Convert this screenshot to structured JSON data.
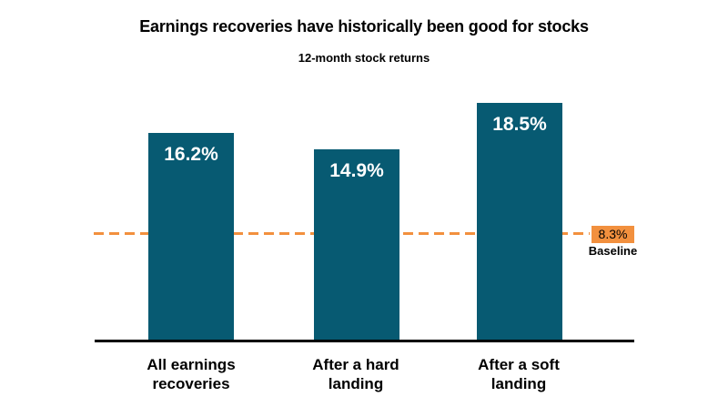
{
  "page": {
    "background": "#FFFFFF"
  },
  "chart_data": {
    "type": "bar",
    "title": "Earnings recoveries have historically been good for stocks",
    "subtitle": "12-month stock returns",
    "categories": [
      "All earnings\nrecoveries",
      "After a hard\nlanding",
      "After a soft\nlanding"
    ],
    "values": [
      16.2,
      14.9,
      18.5
    ],
    "value_labels": [
      "16.2%",
      "14.9%",
      "18.5%"
    ],
    "baseline": {
      "value": 8.3,
      "label": "8.3%",
      "caption": "Baseline"
    },
    "xlabel": "",
    "ylabel": "12-month stock returns",
    "ylim": [
      0,
      26.8
    ],
    "grid": false,
    "legend": false,
    "colors": {
      "bar": "#075A72",
      "baseline": "#F2903E",
      "bar_label": "#FFFFFF",
      "text": "#000000",
      "axis": "#000000"
    }
  }
}
